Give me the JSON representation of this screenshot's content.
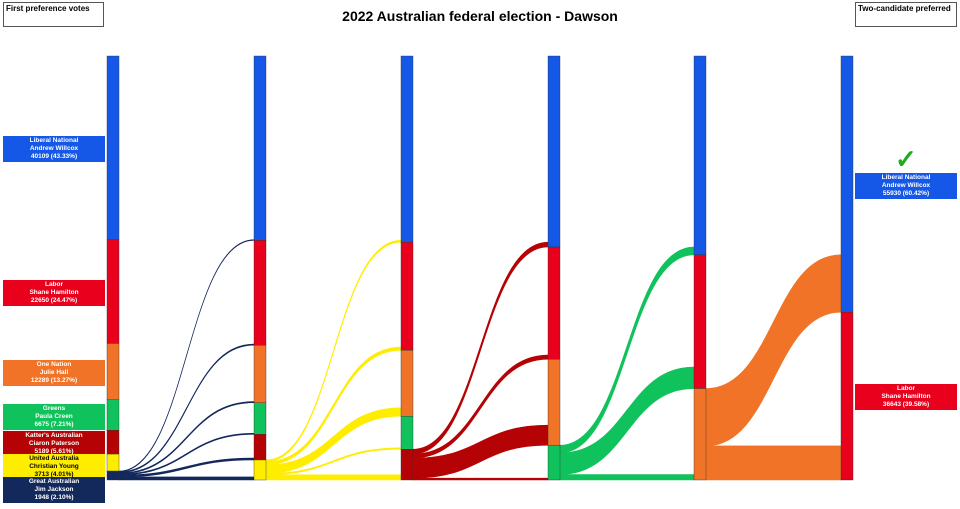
{
  "title": "2022 Australian federal election - Dawson",
  "left_header": "First preference votes",
  "right_header": "Two-candidate preferred",
  "winner_mark": "✓",
  "winner_icon": "check-mark-icon",
  "parties": {
    "LNP": {
      "color": "#1558e8",
      "text_color": "#ffffff"
    },
    "ALP": {
      "color": "#e8001c",
      "text_color": "#ffffff"
    },
    "ON": {
      "color": "#f07327",
      "text_color": "#ffffff"
    },
    "GRN": {
      "color": "#10c25b",
      "text_color": "#ffffff"
    },
    "KAP": {
      "color": "#b50204",
      "text_color": "#ffffff"
    },
    "UAP": {
      "color": "#ffed00",
      "text_color": "#000000"
    },
    "GAP": {
      "color": "#13285b",
      "text_color": "#ffffff"
    }
  },
  "first_preferences": [
    {
      "party": "LNP",
      "party_name": "Liberal National",
      "candidate": "Andrew Willcox",
      "result": "40109 (43.33%)"
    },
    {
      "party": "ALP",
      "party_name": "Labor",
      "candidate": "Shane Hamilton",
      "result": "22650 (24.47%)"
    },
    {
      "party": "ON",
      "party_name": "One Nation",
      "candidate": "Julie Hall",
      "result": "12289 (13.27%)"
    },
    {
      "party": "GRN",
      "party_name": "Greens",
      "candidate": "Paula Creen",
      "result": "6675 (7.21%)"
    },
    {
      "party": "KAP",
      "party_name": "Katter's Australian",
      "candidate": "Ciaron Paterson",
      "result": "5189 (5.61%)"
    },
    {
      "party": "UAP",
      "party_name": "United Australia",
      "candidate": "Christian Young",
      "result": "3713 (4.01%)"
    },
    {
      "party": "GAP",
      "party_name": "Great Australian",
      "candidate": "Jim Jackson",
      "result": "1948 (2.10%)"
    }
  ],
  "two_candidate_preferred": [
    {
      "party": "LNP",
      "party_name": "Liberal National",
      "candidate": "Andrew Willcox",
      "result": "55930 (60.42%)",
      "winner": true
    },
    {
      "party": "ALP",
      "party_name": "Labor",
      "candidate": "Shane Hamilton",
      "result": "36643 (39.58%)",
      "winner": false
    }
  ],
  "chart_data": {
    "type": "sankey",
    "title": "2022 Australian federal election - Dawson",
    "total": 92573,
    "order": [
      "LNP",
      "ALP",
      "ON",
      "GRN",
      "KAP",
      "UAP",
      "GAP"
    ],
    "rounds": [
      {
        "LNP": 40109,
        "ALP": 22650,
        "ON": 12289,
        "GRN": 6675,
        "KAP": 5189,
        "UAP": 3713,
        "GAP": 1948
      },
      {
        "LNP": 40250,
        "ALP": 22900,
        "ON": 12550,
        "GRN": 6900,
        "KAP": 5600,
        "UAP": 4373
      },
      {
        "LNP": 40650,
        "ALP": 23600,
        "ON": 14400,
        "GRN": 7200,
        "KAP": 6723
      },
      {
        "LNP": 41700,
        "ALP": 24500,
        "ON": 18773,
        "GRN": 7600
      },
      {
        "LNP": 43400,
        "ALP": 29200,
        "ON": 19973
      },
      {
        "LNP": 55930,
        "ALP": 36643
      }
    ],
    "eliminated": [
      "GAP",
      "UAP",
      "KAP",
      "GRN",
      "ON"
    ]
  }
}
